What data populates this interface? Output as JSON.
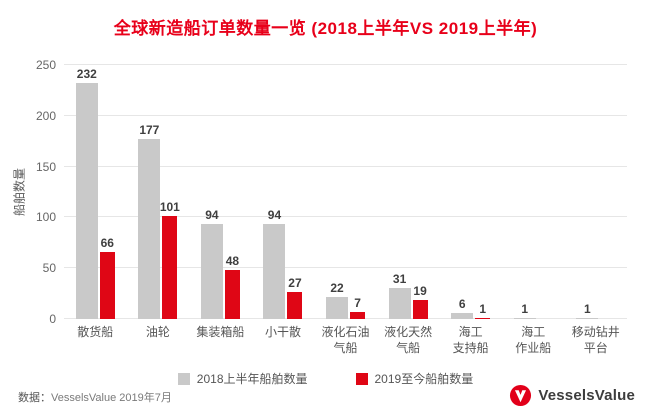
{
  "colors": {
    "title_red": "#e8001a",
    "bar_2018_gray": "#c9c9c9",
    "bar_2019_red": "#df0615",
    "grid_line": "#e6e6e6",
    "logo_red": "#e2001a"
  },
  "chart_data": {
    "type": "bar",
    "title": "全球新造船订单数量一览 (2018上半年VS 2019上半年)",
    "xlabel": "",
    "ylabel": "船舶数量",
    "ylim": [
      0,
      250
    ],
    "yticks": [
      0,
      50,
      100,
      150,
      200,
      250
    ],
    "grid": true,
    "legend_position": "bottom",
    "categories": [
      "散货船",
      "油轮",
      "集装箱船",
      "小干散",
      "液化石油\n气船",
      "液化天然\n气船",
      "海工\n支持船",
      "海工\n作业船",
      "移动钻井\n平台"
    ],
    "series": [
      {
        "name": "2018上半年船舶数量",
        "color": "#c9c9c9",
        "values": [
          232,
          177,
          94,
          94,
          22,
          31,
          6,
          1,
          1
        ]
      },
      {
        "name": "2019至今船舶数量",
        "color": "#df0615",
        "values": [
          66,
          101,
          48,
          27,
          7,
          19,
          1,
          0,
          0
        ]
      }
    ]
  },
  "footer": {
    "source_label": "数据：",
    "source_value": "VesselsValue 2019年7月",
    "brand": "VesselsValue"
  }
}
